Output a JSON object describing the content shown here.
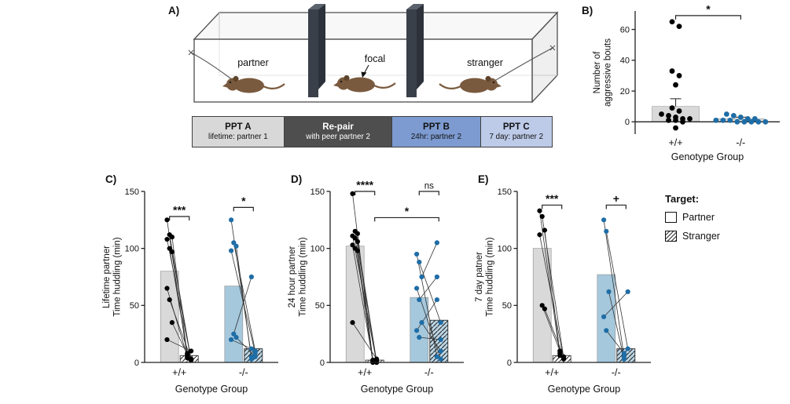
{
  "panels": {
    "a": {
      "label": "A)"
    },
    "b": {
      "label": "B)"
    },
    "c": {
      "label": "C)"
    },
    "d": {
      "label": "D)"
    },
    "e": {
      "label": "E)"
    }
  },
  "apparatus": {
    "chamber_labels": [
      "partner",
      "focal",
      "stranger"
    ]
  },
  "timeline": [
    {
      "title": "PPT A",
      "subtitle": "lifetime: partner 1",
      "bg": "#d8d8d8",
      "fg": "#111111"
    },
    {
      "title": "Re-pair",
      "subtitle": "with peer partner 2",
      "bg": "#4e4e4e",
      "fg": "#ffffff"
    },
    {
      "title": "PPT B",
      "subtitle": "24hr: partner 2",
      "bg": "#7d9bd1",
      "fg": "#111111"
    },
    {
      "title": "PPT C",
      "subtitle": "7 day: partner 2",
      "bg": "#bdcbe9",
      "fg": "#111111"
    }
  ],
  "legend": {
    "title": "Target:",
    "items": [
      {
        "label": "Partner",
        "pattern": "open"
      },
      {
        "label": "Stranger",
        "pattern": "hatched"
      }
    ]
  },
  "colors": {
    "black_points": "#000000",
    "blue_points": "#1f6da6",
    "gray_bar": "#d9d9d9",
    "blue_bar": "#a5c8dd",
    "blue_bar_light": "#bdd7e6",
    "axis": "#222222",
    "hatch": "#222222"
  },
  "chart_data": [
    {
      "panel": "B",
      "type": "scatter-bar",
      "ylabel_lines": [
        "Number of",
        "aggressive bouts"
      ],
      "xlabel": "Genotype Group",
      "categories": [
        "+/+",
        "-/-"
      ],
      "ylim": [
        -8,
        72
      ],
      "yticks": [
        0,
        20,
        40,
        60
      ],
      "bars": [
        10,
        2
      ],
      "error_top": [
        15,
        3
      ],
      "point_colors": [
        "#000000",
        "#1f6da6"
      ],
      "points": [
        [
          65,
          62,
          33,
          30,
          24,
          9,
          7,
          5,
          4,
          3,
          2,
          2,
          1,
          1,
          0,
          -4
        ],
        [
          5,
          4,
          3,
          2,
          2,
          1,
          1,
          1,
          0,
          0,
          0,
          0,
          0
        ]
      ],
      "significance": [
        {
          "x1": "c0",
          "x2": "c1",
          "y": 69,
          "label": "*"
        }
      ]
    },
    {
      "panel": "C",
      "type": "paired-bar-scatter",
      "ylabel_lines": [
        "Lifetime partner",
        "Time huddling (min)"
      ],
      "xlabel": "Genotype Group",
      "categories": [
        "+/+",
        "-/-"
      ],
      "ylim": [
        0,
        150
      ],
      "yticks": [
        0,
        50,
        100,
        150
      ],
      "groups": [
        {
          "category": "+/+",
          "partner_bar": 80,
          "stranger_bar": 6,
          "pairs": [
            [
              125,
              4
            ],
            [
              112,
              2
            ],
            [
              110,
              6
            ],
            [
              108,
              3
            ],
            [
              100,
              8
            ],
            [
              97,
              2
            ],
            [
              65,
              5
            ],
            [
              55,
              3
            ],
            [
              35,
              7
            ],
            [
              20,
              10
            ]
          ]
        },
        {
          "category": "-/-",
          "partner_bar": 67,
          "stranger_bar": 12,
          "pairs": [
            [
              125,
              5
            ],
            [
              105,
              10
            ],
            [
              102,
              3
            ],
            [
              98,
              8
            ],
            [
              25,
              75
            ],
            [
              22,
              5
            ],
            [
              20,
              12
            ]
          ]
        }
      ],
      "significance": [
        {
          "x1": "g0p",
          "x2": "g0s",
          "y": 128,
          "label": "***"
        },
        {
          "x1": "g1p",
          "x2": "g1s",
          "y": 136,
          "label": "*"
        }
      ]
    },
    {
      "panel": "D",
      "type": "paired-bar-scatter",
      "ylabel_lines": [
        "24 hour partner",
        "Time huddling (min)"
      ],
      "xlabel": "Genotype Group",
      "categories": [
        "+/+",
        "-/-"
      ],
      "ylim": [
        0,
        150
      ],
      "yticks": [
        0,
        50,
        100,
        150
      ],
      "groups": [
        {
          "category": "+/+",
          "partner_bar": 102,
          "stranger_bar": 2,
          "pairs": [
            [
              148,
              1
            ],
            [
              115,
              0
            ],
            [
              113,
              2
            ],
            [
              111,
              1
            ],
            [
              109,
              0
            ],
            [
              106,
              1
            ],
            [
              103,
              2
            ],
            [
              100,
              0
            ],
            [
              98,
              1
            ],
            [
              35,
              3
            ]
          ]
        },
        {
          "category": "-/-",
          "partner_bar": 57,
          "stranger_bar": 37,
          "pairs": [
            [
              95,
              5
            ],
            [
              88,
              35
            ],
            [
              75,
              105
            ],
            [
              65,
              3
            ],
            [
              55,
              75
            ],
            [
              35,
              10
            ],
            [
              28,
              55
            ],
            [
              22,
              20
            ]
          ]
        }
      ],
      "significance": [
        {
          "x1": "g0p",
          "x2": "g0s",
          "y": 150,
          "label": "****"
        },
        {
          "x1": "g1p",
          "x2": "g1s",
          "y": 150,
          "label": "ns"
        },
        {
          "x1": "g0s",
          "x2": "g1s",
          "y": 127,
          "label": "*"
        }
      ]
    },
    {
      "panel": "E",
      "type": "paired-bar-scatter",
      "ylabel_lines": [
        "7 day patner",
        "Time huddling (min)"
      ],
      "xlabel": "Genotype Group",
      "categories": [
        "+/+",
        "-/-"
      ],
      "ylim": [
        0,
        150
      ],
      "yticks": [
        0,
        50,
        100,
        150
      ],
      "groups": [
        {
          "category": "+/+",
          "partner_bar": 100,
          "stranger_bar": 6,
          "pairs": [
            [
              133,
              6
            ],
            [
              128,
              4
            ],
            [
              116,
              8
            ],
            [
              112,
              3
            ],
            [
              50,
              10
            ],
            [
              47,
              5
            ]
          ]
        },
        {
          "category": "-/-",
          "partner_bar": 77,
          "stranger_bar": 12,
          "pairs": [
            [
              125,
              5
            ],
            [
              115,
              12
            ],
            [
              62,
              3
            ],
            [
              40,
              62
            ],
            [
              28,
              8
            ]
          ]
        }
      ],
      "significance": [
        {
          "x1": "g0p",
          "x2": "g0s",
          "y": 138,
          "label": "***"
        },
        {
          "x1": "g1p",
          "x2": "g1s",
          "y": 138,
          "label": "+"
        }
      ]
    }
  ]
}
